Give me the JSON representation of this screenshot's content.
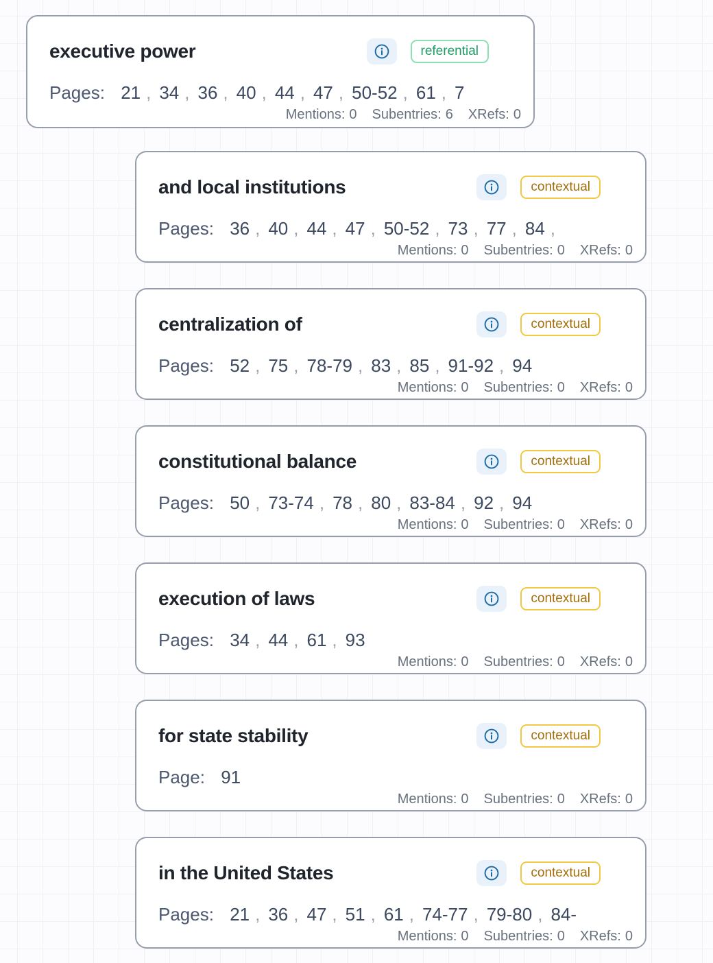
{
  "labels": {
    "mentions": "Mentions:",
    "subentries": "Subentries:",
    "xrefs": "XRefs:",
    "page_separator": ","
  },
  "colors": {
    "card_border": "#969eac",
    "info_icon_blue": "#1b6aa5",
    "info_button_bg": "#e9f2fb",
    "referential_text": "#1f9c66",
    "referential_border": "#8bdfb3",
    "contextual_text": "#a36f0b",
    "contextual_border": "#f2c844"
  },
  "cards": [
    {
      "title": "executive power",
      "badge": {
        "label": "referential",
        "type": "referential"
      },
      "pages_label": "Pages:",
      "pages": [
        "21",
        "34",
        "36",
        "40",
        "44",
        "47",
        "50-52",
        "61",
        "7"
      ],
      "trailing_separator": false,
      "stats": {
        "mentions": "0",
        "subentries": "6",
        "xrefs": "0"
      },
      "indent": false
    },
    {
      "title": "and local institutions",
      "badge": {
        "label": "contextual",
        "type": "contextual"
      },
      "pages_label": "Pages:",
      "pages": [
        "36",
        "40",
        "44",
        "47",
        "50-52",
        "73",
        "77",
        "84"
      ],
      "trailing_separator": true,
      "stats": {
        "mentions": "0",
        "subentries": "0",
        "xrefs": "0"
      },
      "indent": true
    },
    {
      "title": "centralization of",
      "badge": {
        "label": "contextual",
        "type": "contextual"
      },
      "pages_label": "Pages:",
      "pages": [
        "52",
        "75",
        "78-79",
        "83",
        "85",
        "91-92",
        "94"
      ],
      "trailing_separator": false,
      "stats": {
        "mentions": "0",
        "subentries": "0",
        "xrefs": "0"
      },
      "indent": true
    },
    {
      "title": "constitutional balance",
      "badge": {
        "label": "contextual",
        "type": "contextual"
      },
      "pages_label": "Pages:",
      "pages": [
        "50",
        "73-74",
        "78",
        "80",
        "83-84",
        "92",
        "94"
      ],
      "trailing_separator": false,
      "stats": {
        "mentions": "0",
        "subentries": "0",
        "xrefs": "0"
      },
      "indent": true
    },
    {
      "title": "execution of laws",
      "badge": {
        "label": "contextual",
        "type": "contextual"
      },
      "pages_label": "Pages:",
      "pages": [
        "34",
        "44",
        "61",
        "93"
      ],
      "trailing_separator": false,
      "stats": {
        "mentions": "0",
        "subentries": "0",
        "xrefs": "0"
      },
      "indent": true
    },
    {
      "title": "for state stability",
      "badge": {
        "label": "contextual",
        "type": "contextual"
      },
      "pages_label": "Page:",
      "pages": [
        "91"
      ],
      "trailing_separator": false,
      "stats": {
        "mentions": "0",
        "subentries": "0",
        "xrefs": "0"
      },
      "indent": true
    },
    {
      "title": "in the United States",
      "badge": {
        "label": "contextual",
        "type": "contextual"
      },
      "pages_label": "Pages:",
      "pages": [
        "21",
        "36",
        "47",
        "51",
        "61",
        "74-77",
        "79-80",
        "84-"
      ],
      "trailing_separator": false,
      "stats": {
        "mentions": "0",
        "subentries": "0",
        "xrefs": "0"
      },
      "indent": true
    }
  ]
}
